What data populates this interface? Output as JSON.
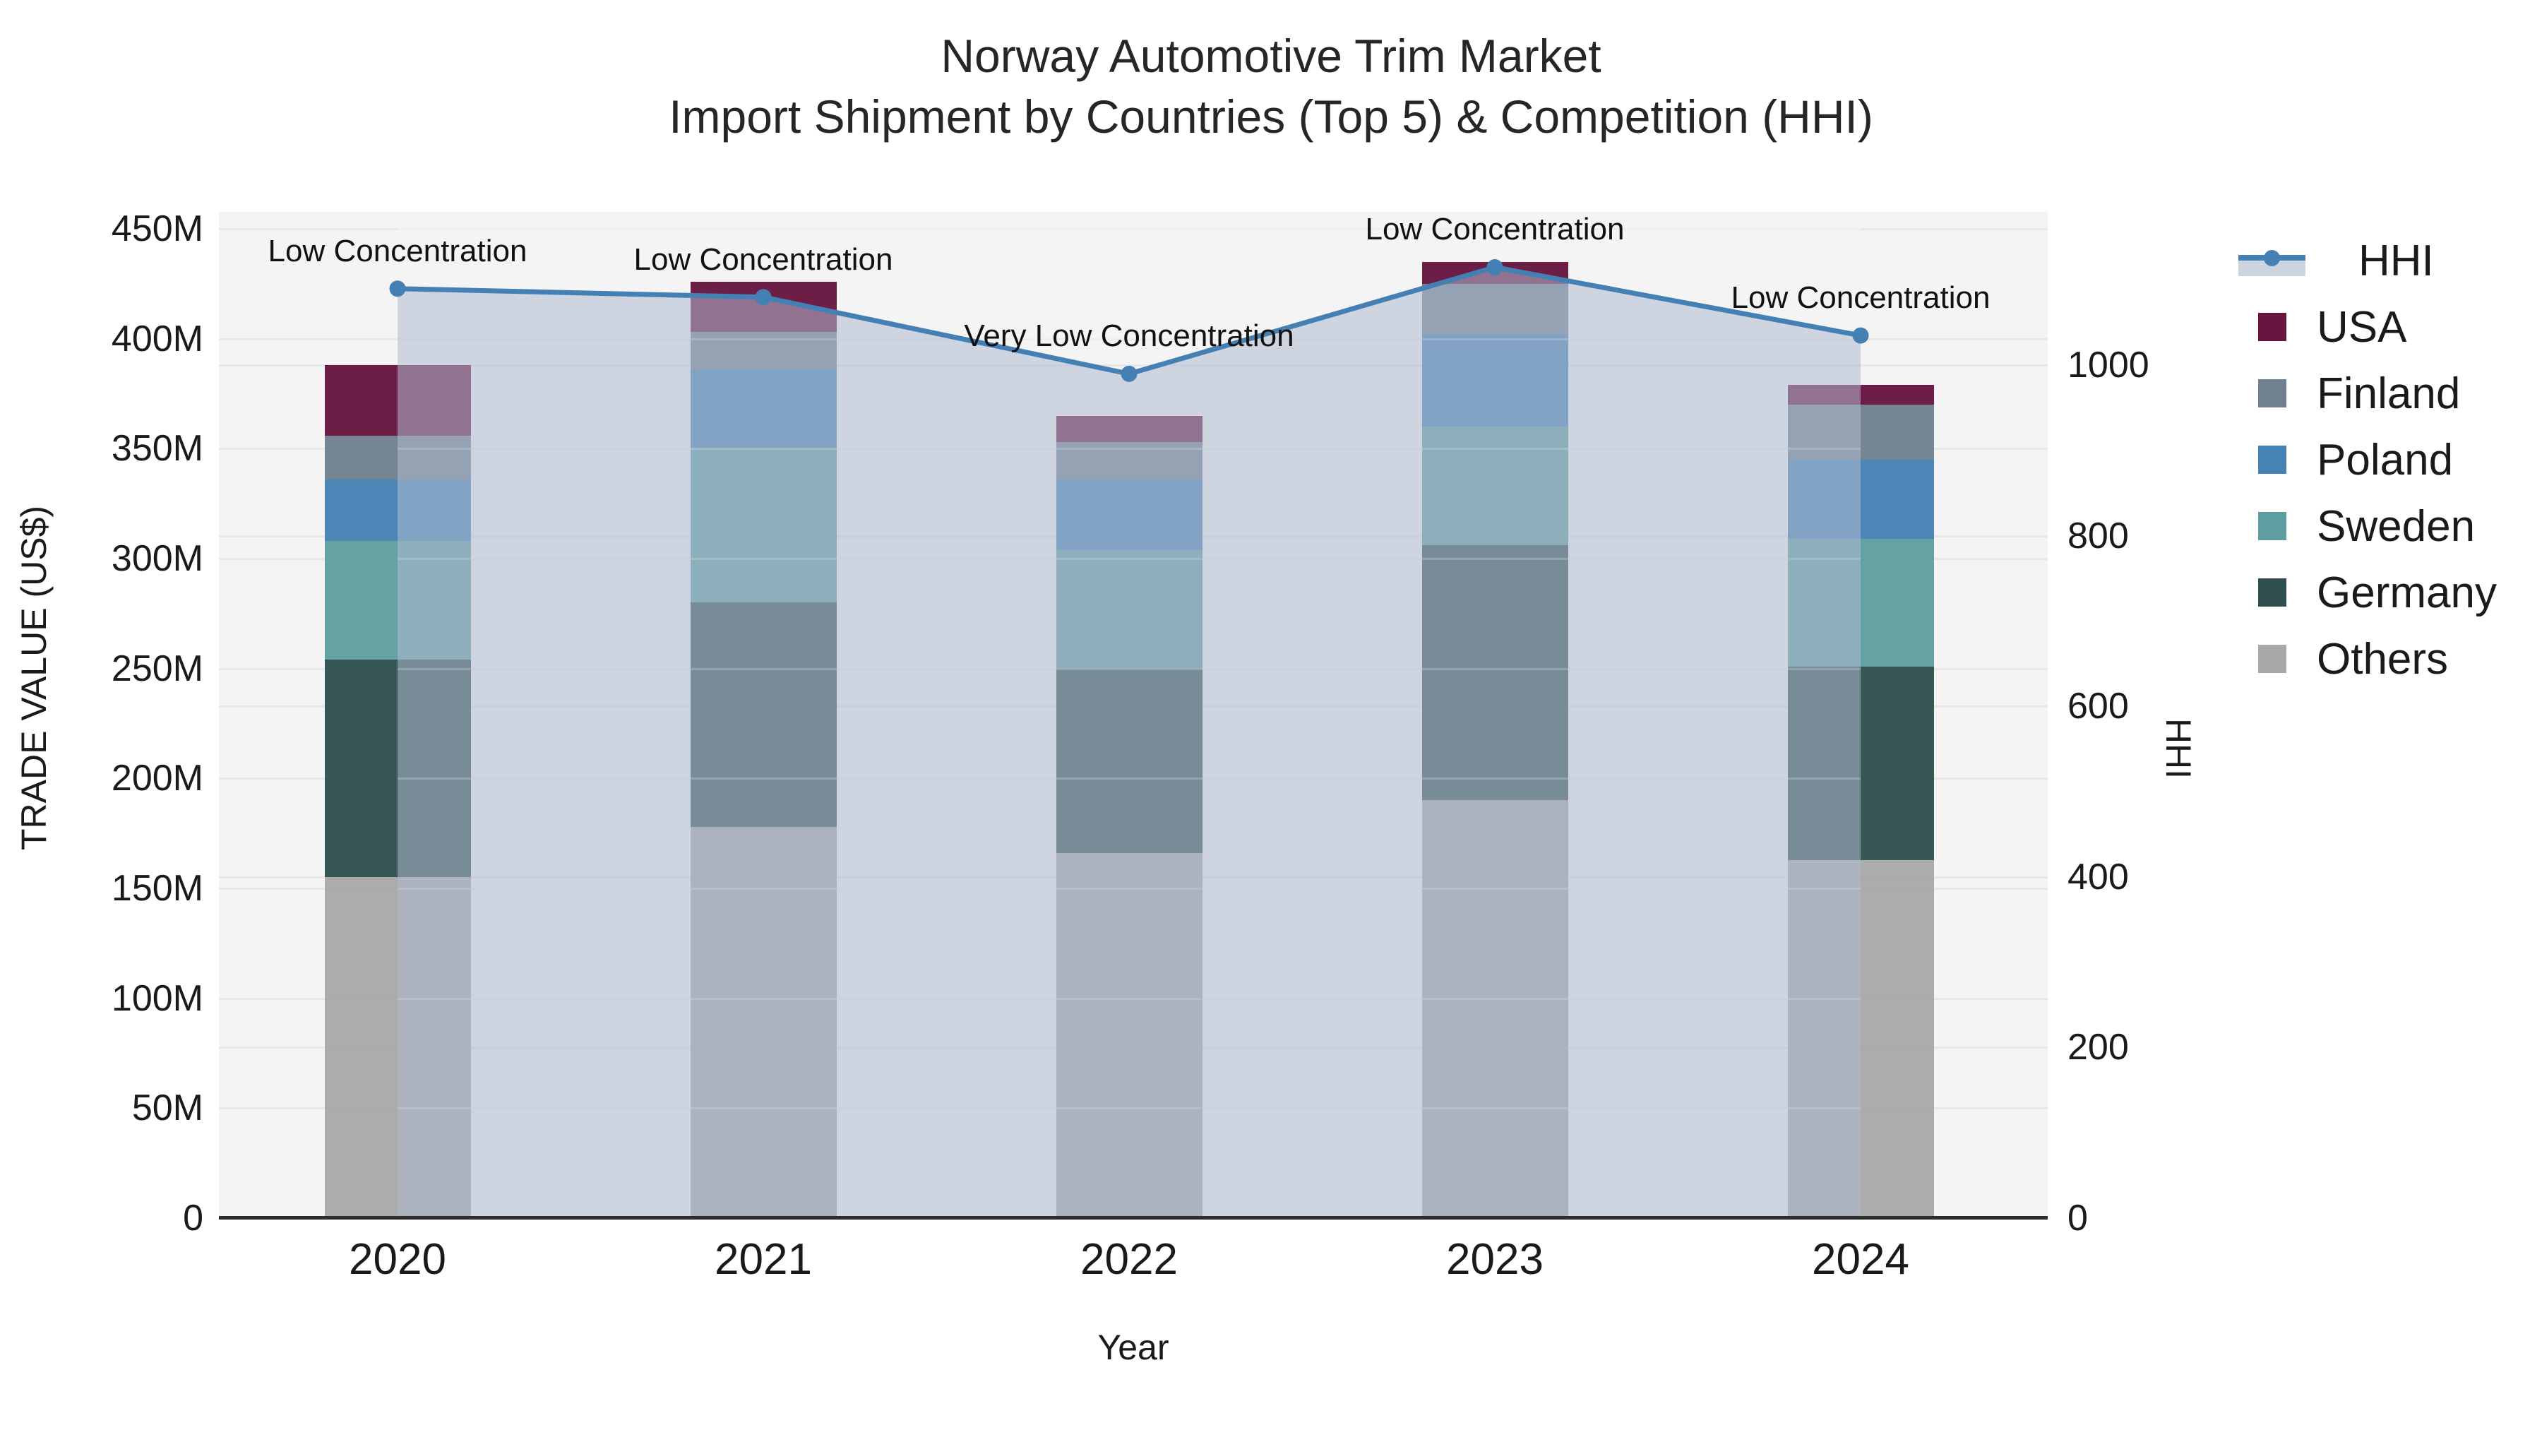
{
  "title": {
    "line1": "Norway Automotive Trim Market",
    "line2": "Import Shipment by Countries (Top 5) & Competition (HHI)"
  },
  "axes": {
    "x": {
      "label": "Year",
      "categories": [
        "2020",
        "2021",
        "2022",
        "2023",
        "2024"
      ]
    },
    "y_left": {
      "label": "TRADE VALUE (US$)",
      "ticks": [
        {
          "value": 0,
          "label": "0"
        },
        {
          "value": 50,
          "label": "50M"
        },
        {
          "value": 100,
          "label": "100M"
        },
        {
          "value": 150,
          "label": "150M"
        },
        {
          "value": 200,
          "label": "200M"
        },
        {
          "value": 250,
          "label": "250M"
        },
        {
          "value": 300,
          "label": "300M"
        },
        {
          "value": 350,
          "label": "350M"
        },
        {
          "value": 400,
          "label": "400M"
        },
        {
          "value": 450,
          "label": "450M"
        }
      ]
    },
    "y_right": {
      "label": "HHI",
      "ticks": [
        {
          "value": 0,
          "label": "0"
        },
        {
          "value": 200,
          "label": "200"
        },
        {
          "value": 400,
          "label": "400"
        },
        {
          "value": 600,
          "label": "600"
        },
        {
          "value": 800,
          "label": "800"
        },
        {
          "value": 1000,
          "label": "1000"
        }
      ]
    }
  },
  "chart_data": {
    "type": "bar",
    "subtype": "stacked-bars-with-line",
    "title": "Norway Automotive Trim Market — Import Shipment by Countries (Top 5) & Competition (HHI)",
    "xlabel": "Year",
    "ylabel_left": "TRADE VALUE (US$)",
    "ylabel_right": "HHI",
    "ylim_left_millions": [
      0,
      450
    ],
    "ylim_right": [
      0,
      1000
    ],
    "categories": [
      "2020",
      "2021",
      "2022",
      "2023",
      "2024"
    ],
    "series": [
      {
        "name": "Others",
        "color": "#a9a9a9",
        "values_millions": [
          155,
          178,
          166,
          190,
          163
        ]
      },
      {
        "name": "Germany",
        "color": "#2f4f4f",
        "values_millions": [
          99,
          102,
          84,
          116,
          88
        ]
      },
      {
        "name": "Sweden",
        "color": "#5f9ea0",
        "values_millions": [
          54,
          70,
          54,
          54,
          58
        ]
      },
      {
        "name": "Poland",
        "color": "#4682b4",
        "values_millions": [
          28,
          36,
          32,
          42,
          36
        ]
      },
      {
        "name": "Finland",
        "color": "#708090",
        "values_millions": [
          20,
          17,
          17,
          23,
          25
        ]
      },
      {
        "name": "USA",
        "color": "#67153f",
        "values_millions": [
          32,
          23,
          12,
          10,
          9
        ]
      }
    ],
    "totals_millions": [
      388,
      426,
      365,
      435,
      379
    ],
    "hhi_line": {
      "name": "HHI",
      "line_color": "#4580b4",
      "area_fill": "rgba(174,186,205,0.55)",
      "values": [
        1090,
        1080,
        990,
        1115,
        1035
      ]
    },
    "annotations": [
      "Low Concentration",
      "Low Concentration",
      "Very Low Concentration",
      "Low Concentration",
      "Low Concentration"
    ],
    "legend_position": "right",
    "grid": true
  },
  "legend": {
    "items": [
      {
        "label": "HHI",
        "type": "line-sample"
      },
      {
        "label": "USA",
        "type": "swatch",
        "color": "#67153f"
      },
      {
        "label": "Finland",
        "type": "swatch",
        "color": "#708090"
      },
      {
        "label": "Poland",
        "type": "swatch",
        "color": "#4682b4"
      },
      {
        "label": "Sweden",
        "type": "swatch",
        "color": "#5f9ea0"
      },
      {
        "label": "Germany",
        "type": "swatch",
        "color": "#2f4f4f"
      },
      {
        "label": "Others",
        "type": "swatch",
        "color": "#a9a9a9"
      }
    ]
  }
}
